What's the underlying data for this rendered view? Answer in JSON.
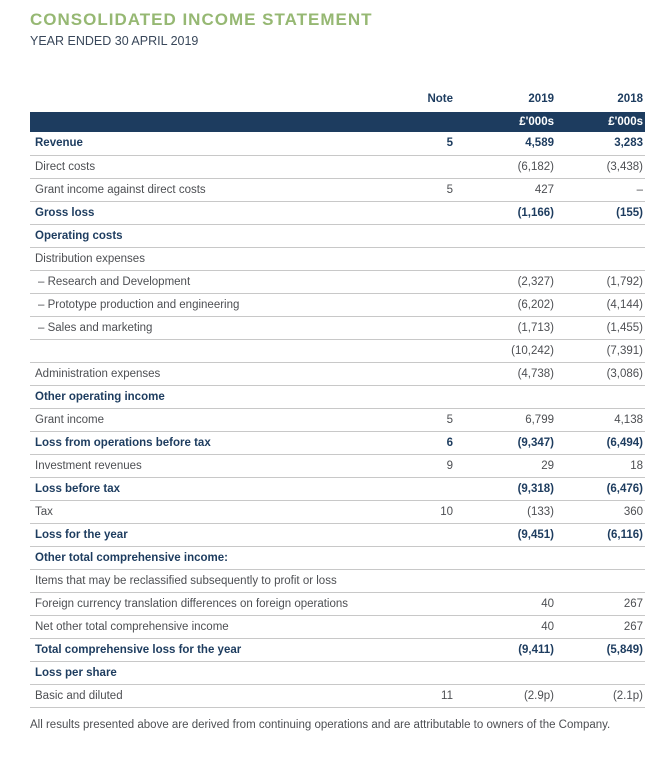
{
  "page": {
    "title": "CONSOLIDATED INCOME STATEMENT",
    "subtitle": "YEAR ENDED 30 APRIL 2019",
    "footnote": "All results presented above are derived from continuing operations and are attributable to owners of the Company."
  },
  "colors": {
    "title_green": "#96b873",
    "navy": "#1d3c5f",
    "body_text": "#4d4f53",
    "row_border": "#c8c8c8"
  },
  "table": {
    "columns": {
      "label": "",
      "note": "Note",
      "y2019": "2019",
      "y2018": "2018"
    },
    "units_row": {
      "y2019": "£'000s",
      "y2018": "£'000s"
    },
    "rows": [
      {
        "label": "Revenue",
        "note": "5",
        "y2019": "4,589",
        "y2018": "3,283",
        "style": "bold"
      },
      {
        "label": "Direct costs",
        "note": "",
        "y2019": "(6,182)",
        "y2018": "(3,438)",
        "style": "normal"
      },
      {
        "label": "Grant income against direct costs",
        "note": "5",
        "y2019": "427",
        "y2018": "–",
        "style": "normal"
      },
      {
        "label": "Gross loss",
        "note": "",
        "y2019": "(1,166)",
        "y2018": "(155)",
        "style": "bold"
      },
      {
        "label": "Operating costs",
        "note": "",
        "y2019": "",
        "y2018": "",
        "style": "section"
      },
      {
        "label": "Distribution expenses",
        "note": "",
        "y2019": "",
        "y2018": "",
        "style": "normal"
      },
      {
        "label": "– Research and Development",
        "note": "",
        "y2019": "(2,327)",
        "y2018": "(1,792)",
        "style": "normal",
        "indent": true
      },
      {
        "label": "– Prototype production and engineering",
        "note": "",
        "y2019": "(6,202)",
        "y2018": "(4,144)",
        "style": "normal",
        "indent": true
      },
      {
        "label": "– Sales and marketing",
        "note": "",
        "y2019": "(1,713)",
        "y2018": "(1,455)",
        "style": "normal",
        "indent": true
      },
      {
        "label": "",
        "note": "",
        "y2019": "(10,242)",
        "y2018": "(7,391)",
        "style": "normal"
      },
      {
        "label": "Administration expenses",
        "note": "",
        "y2019": "(4,738)",
        "y2018": "(3,086)",
        "style": "normal"
      },
      {
        "label": "Other operating income",
        "note": "",
        "y2019": "",
        "y2018": "",
        "style": "section"
      },
      {
        "label": "Grant income",
        "note": "5",
        "y2019": "6,799",
        "y2018": "4,138",
        "style": "normal"
      },
      {
        "label": "Loss from operations before tax",
        "note": "6",
        "y2019": "(9,347)",
        "y2018": "(6,494)",
        "style": "bold"
      },
      {
        "label": "Investment revenues",
        "note": "9",
        "y2019": "29",
        "y2018": "18",
        "style": "normal"
      },
      {
        "label": "Loss before tax",
        "note": "",
        "y2019": "(9,318)",
        "y2018": "(6,476)",
        "style": "bold"
      },
      {
        "label": "Tax",
        "note": "10",
        "y2019": "(133)",
        "y2018": "360",
        "style": "normal"
      },
      {
        "label": "Loss for the year",
        "note": "",
        "y2019": "(9,451)",
        "y2018": "(6,116)",
        "style": "bold"
      },
      {
        "label": "Other total comprehensive income:",
        "note": "",
        "y2019": "",
        "y2018": "",
        "style": "section"
      },
      {
        "label": "Items that may be reclassified subsequently to profit or loss",
        "note": "",
        "y2019": "",
        "y2018": "",
        "style": "normal"
      },
      {
        "label": "Foreign currency translation differences on foreign operations",
        "note": "",
        "y2019": "40",
        "y2018": "267",
        "style": "normal"
      },
      {
        "label": "Net other total comprehensive income",
        "note": "",
        "y2019": "40",
        "y2018": "267",
        "style": "normal"
      },
      {
        "label": "Total comprehensive loss for the year",
        "note": "",
        "y2019": "(9,411)",
        "y2018": "(5,849)",
        "style": "bold"
      },
      {
        "label": "Loss per share",
        "note": "",
        "y2019": "",
        "y2018": "",
        "style": "section"
      },
      {
        "label": "Basic and diluted",
        "note": "11",
        "y2019": "(2.9p)",
        "y2018": "(2.1p)",
        "style": "normal"
      }
    ]
  }
}
